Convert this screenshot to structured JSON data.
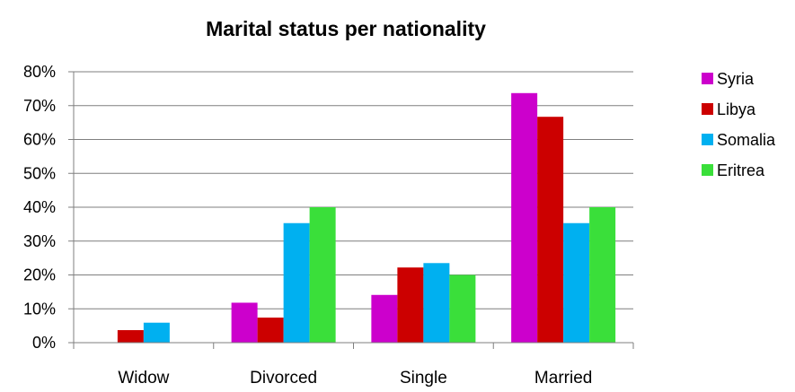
{
  "chart_data": {
    "type": "bar",
    "title": "Marital status per nationality",
    "categories": [
      "Widow",
      "Divorced",
      "Single",
      "Married"
    ],
    "series": [
      {
        "name": "Syria",
        "color": "#CC00CC",
        "values": [
          0,
          11.8,
          14.1,
          73.7
        ]
      },
      {
        "name": "Libya",
        "color": "#CC0000",
        "values": [
          3.7,
          7.4,
          22.2,
          66.7
        ]
      },
      {
        "name": "Somalia",
        "color": "#00B0F0",
        "values": [
          5.9,
          35.3,
          23.5,
          35.3
        ]
      },
      {
        "name": "Eritrea",
        "color": "#3ADF3A",
        "values": [
          0,
          40.0,
          20.0,
          40.0
        ]
      }
    ],
    "ylim": [
      0,
      80
    ],
    "yticks": [
      0,
      10,
      20,
      30,
      40,
      50,
      60,
      70,
      80
    ],
    "ytick_labels": [
      "0%",
      "10%",
      "20%",
      "30%",
      "40%",
      "50%",
      "60%",
      "70%",
      "80%"
    ],
    "grid": true,
    "legend_position": "right"
  }
}
